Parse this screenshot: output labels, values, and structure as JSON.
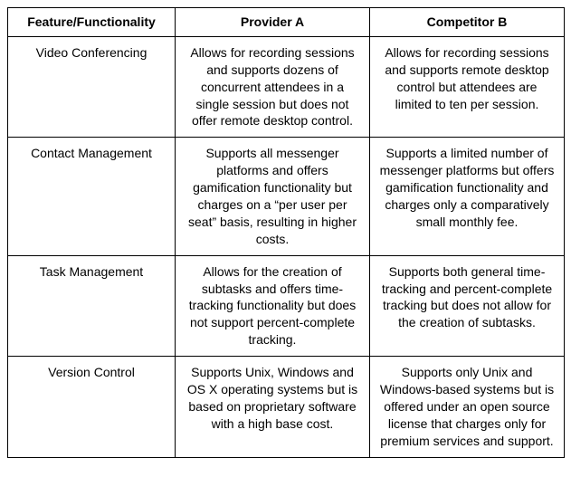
{
  "table": {
    "columns": [
      {
        "label": "Feature/Functionality"
      },
      {
        "label": "Provider A"
      },
      {
        "label": "Competitor B"
      }
    ],
    "rows": [
      {
        "feature": "Video Conferencing",
        "provider": "Allows for recording sessions and supports dozens of concurrent attendees in a single session but does not offer remote desktop control.",
        "competitor": "Allows for recording sessions and supports remote desktop control but attendees are limited to ten per session."
      },
      {
        "feature": "Contact Management",
        "provider": "Supports all messenger platforms and offers gamification functionality but charges on a “per user per seat” basis, resulting in higher costs.",
        "competitor": "Supports a limited number of messenger platforms but offers gamification functionality and charges only a comparatively small monthly fee."
      },
      {
        "feature": "Task Management",
        "provider": "Allows for the creation of subtasks and offers time-tracking functionality but does not support percent-complete tracking.",
        "competitor": "Supports both general time-tracking and percent-complete tracking but does not allow for the creation of subtasks."
      },
      {
        "feature": "Version Control",
        "provider": "Supports Unix, Windows and OS X operating systems but is based on proprietary software with a high base cost.",
        "competitor": "Supports only Unix and Windows-based systems but is offered under an open source license that charges only for premium services and support."
      }
    ],
    "border_color": "#000000",
    "background_color": "#ffffff",
    "text_color": "#000000",
    "header_fontsize": 14,
    "cell_fontsize": 14
  }
}
